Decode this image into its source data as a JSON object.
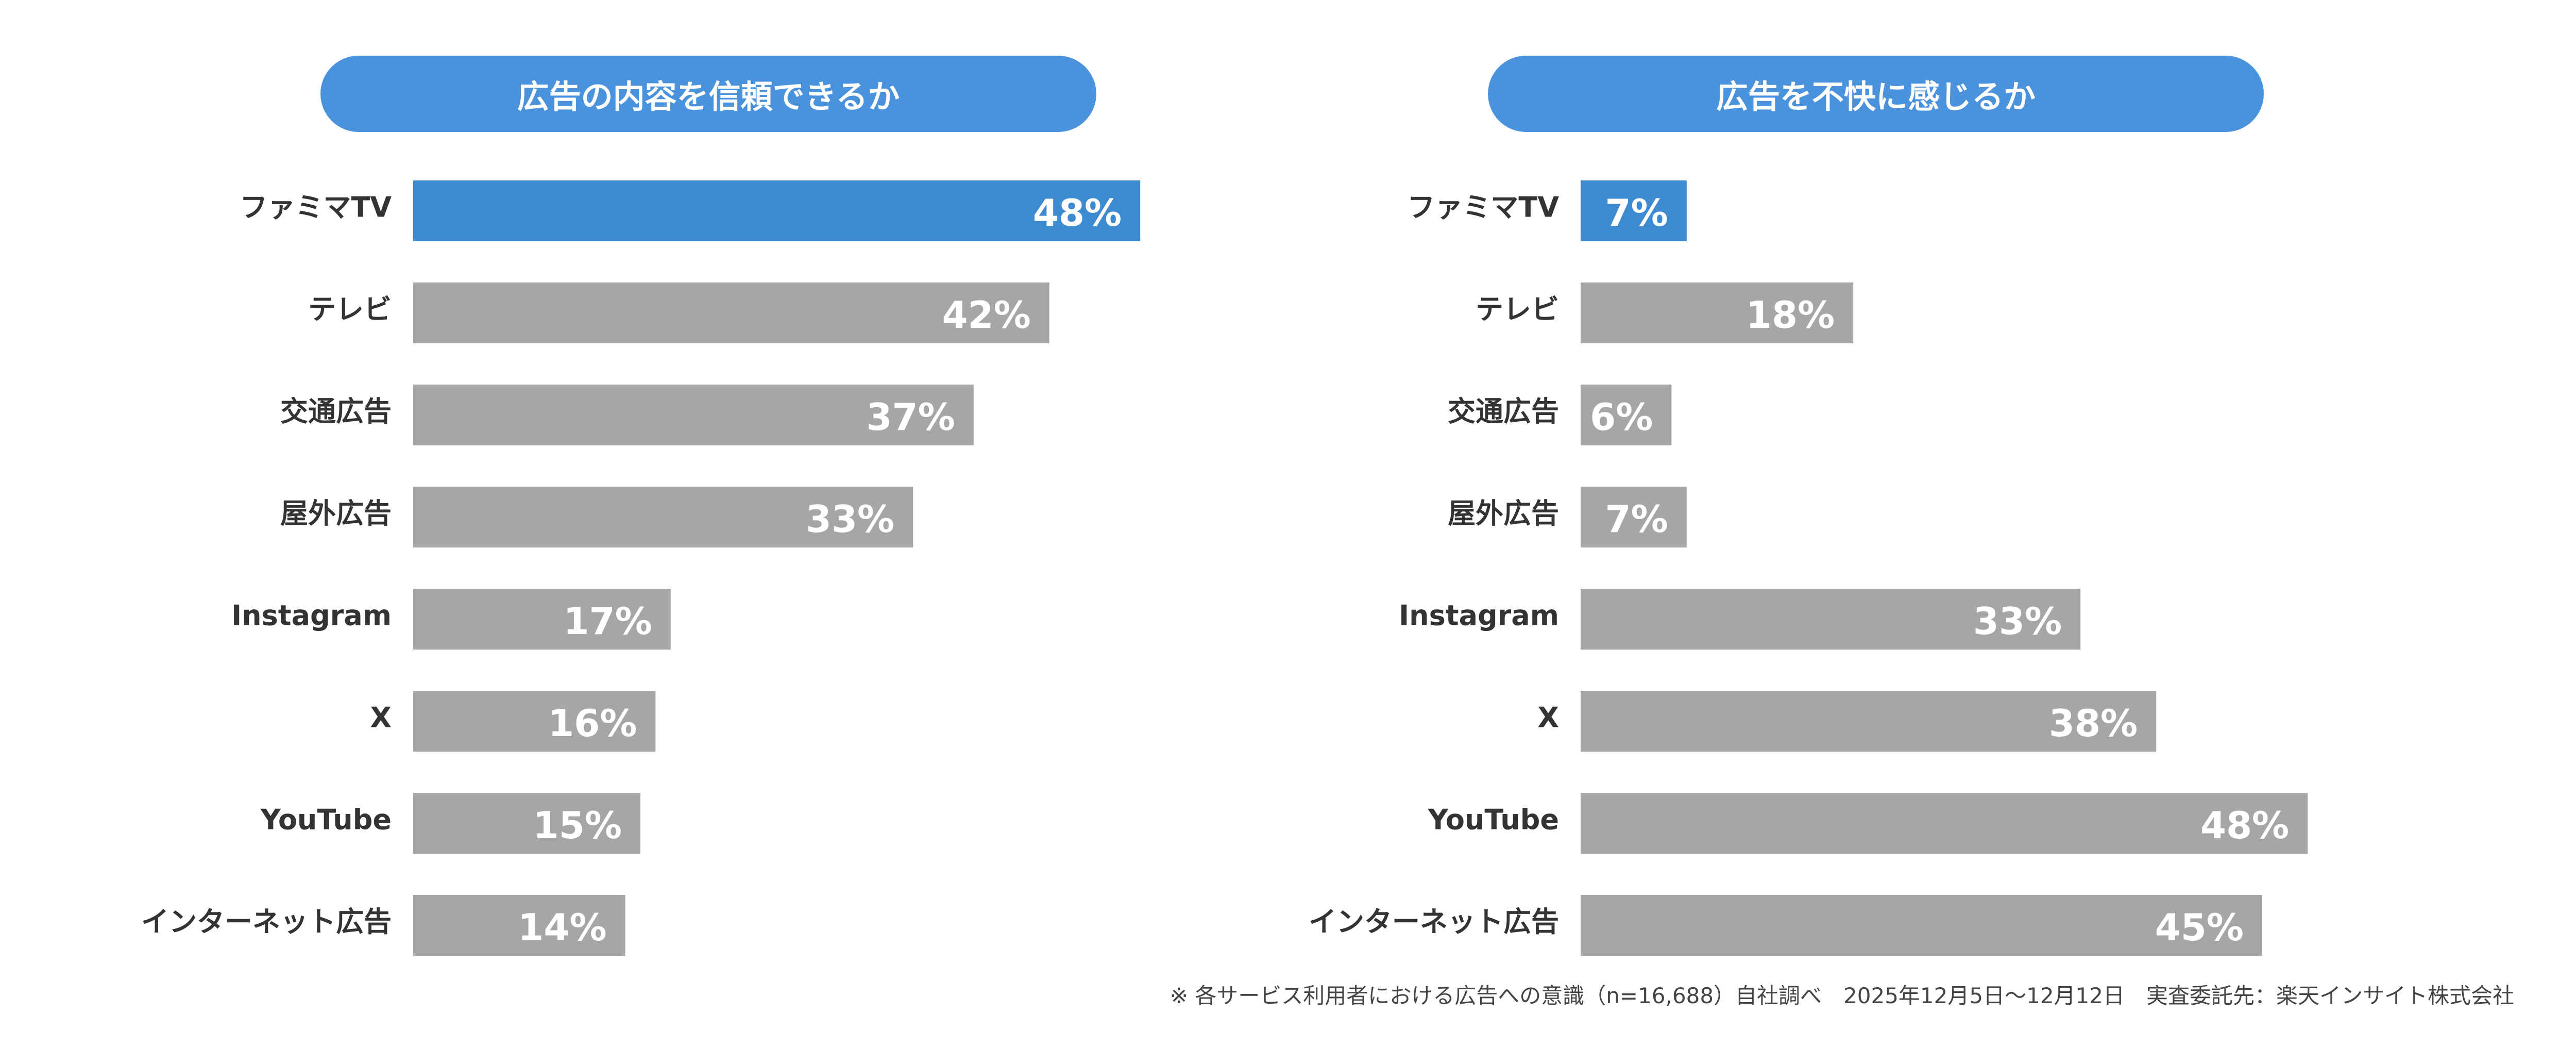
{
  "colors": {
    "highlight_bar": "#3d8ad0",
    "default_bar": "#a6a6a6",
    "title_pill": "#4a93dc"
  },
  "chart_data": [
    {
      "type": "bar",
      "orientation": "horizontal",
      "title": "広告の内容を信頼できるか",
      "categories": [
        "ファミマTV",
        "テレビ",
        "交通広告",
        "屋外広告",
        "Instagram",
        "X",
        "YouTube",
        "インターネット広告"
      ],
      "values": [
        48,
        42,
        37,
        33,
        17,
        16,
        15,
        14
      ],
      "value_labels": [
        "48%",
        "42%",
        "37%",
        "33%",
        "17%",
        "16%",
        "15%",
        "14%"
      ],
      "highlight_index": 0,
      "unit": "%"
    },
    {
      "type": "bar",
      "orientation": "horizontal",
      "title": "広告を不快に感じるか",
      "categories": [
        "ファミマTV",
        "テレビ",
        "交通広告",
        "屋外広告",
        "Instagram",
        "X",
        "YouTube",
        "インターネット広告"
      ],
      "values": [
        7,
        18,
        6,
        7,
        33,
        38,
        48,
        45
      ],
      "value_labels": [
        "7%",
        "18%",
        "6%",
        "7%",
        "33%",
        "38%",
        "48%",
        "45%"
      ],
      "highlight_index": 0,
      "unit": "%"
    }
  ],
  "footnote": "※ 各サービス利用者における広告への意識（n=16,688）自社調べ　2025年12月5日～12月12日　実査委託先：楽天インサイト株式会社"
}
